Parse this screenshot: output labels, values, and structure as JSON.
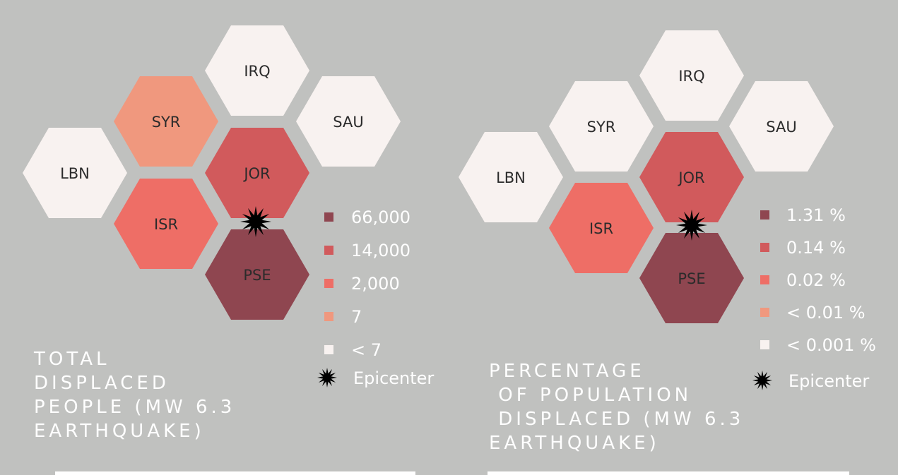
{
  "colors": {
    "background": "#c0c1bf",
    "bin_66000_1_31": "#8f4650",
    "bin_14000_0_14": "#d15a5c",
    "bin_2000_0_02": "#ee6e66",
    "bin_7_lt_0_01": "#f0987e",
    "bin_lt7_lt_0_001": "#f8f2f0",
    "epicenter": "#000000"
  },
  "panels": [
    {
      "title": "TOTAL\nDISPLACED\nPEOPLE (MW 6.3\nEARTHQUAKE)",
      "legend": [
        {
          "label": "66,000",
          "color": "#8f4650"
        },
        {
          "label": "14,000",
          "color": "#d15a5c"
        },
        {
          "label": "2,000",
          "color": "#ee6e66"
        },
        {
          "label": "7",
          "color": "#f0987e"
        },
        {
          "label": "< 7",
          "color": "#f8f2f0"
        }
      ],
      "epicenter_label": "Epicenter",
      "countries": [
        {
          "code": "IRQ",
          "value": "< 7",
          "color": "#f8f2f0"
        },
        {
          "code": "SYR",
          "value": "7",
          "color": "#f0987e"
        },
        {
          "code": "SAU",
          "value": "< 7",
          "color": "#f8f2f0"
        },
        {
          "code": "LBN",
          "value": "< 7",
          "color": "#f8f2f0"
        },
        {
          "code": "JOR",
          "value": "14,000",
          "color": "#d15a5c"
        },
        {
          "code": "ISR",
          "value": "2,000",
          "color": "#ee6e66"
        },
        {
          "code": "PSE",
          "value": "66,000",
          "color": "#8f4650"
        }
      ]
    },
    {
      "title": "PERCENTAGE\n OF POPULATION\n DISPLACED (MW 6.3\nEARTHQUAKE)",
      "legend": [
        {
          "label": "1.31 %",
          "color": "#8f4650"
        },
        {
          "label": "0.14 %",
          "color": "#d15a5c"
        },
        {
          "label": "0.02 %",
          "color": "#ee6e66"
        },
        {
          "label": "< 0.01 %",
          "color": "#f0987e"
        },
        {
          "label": "< 0.001 %",
          "color": "#f8f2f0"
        }
      ],
      "epicenter_label": "Epicenter",
      "countries": [
        {
          "code": "IRQ",
          "value": "< 0.001 %",
          "color": "#f8f2f0"
        },
        {
          "code": "SYR",
          "value": "< 0.001 %",
          "color": "#f8f2f0"
        },
        {
          "code": "SAU",
          "value": "< 0.001 %",
          "color": "#f8f2f0"
        },
        {
          "code": "LBN",
          "value": "< 0.001 %",
          "color": "#f8f2f0"
        },
        {
          "code": "JOR",
          "value": "0.14 %",
          "color": "#d15a5c"
        },
        {
          "code": "ISR",
          "value": "0.02 %",
          "color": "#ee6e66"
        },
        {
          "code": "PSE",
          "value": "1.31 %",
          "color": "#8f4650"
        }
      ]
    }
  ]
}
